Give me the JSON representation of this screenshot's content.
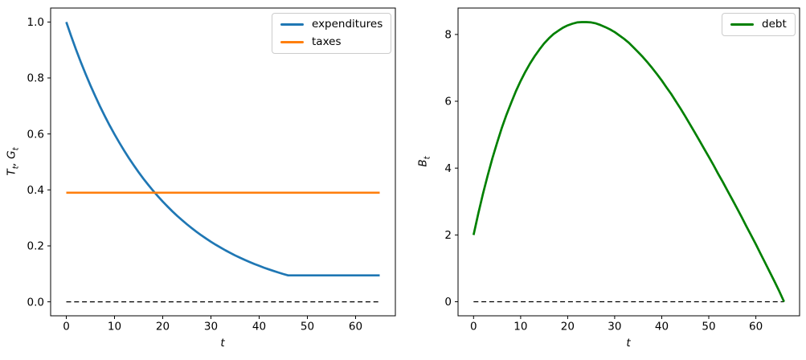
{
  "figure": {
    "background": "#ffffff",
    "spine_color": "#000000",
    "zero_line_color": "#000000"
  },
  "chart_data": [
    {
      "type": "line",
      "xlabel": "t",
      "ylabel": "T_t, G_t",
      "ylabel_parts": {
        "v1": "T",
        "s1": "t",
        "v2": ", G",
        "s2": "t"
      },
      "xlim": [
        -3.25,
        68.25
      ],
      "ylim": [
        -0.05,
        1.05
      ],
      "xtick_values": [
        0,
        10,
        20,
        30,
        40,
        50,
        60
      ],
      "xtick_labels": [
        "0",
        "10",
        "20",
        "30",
        "40",
        "50",
        "60"
      ],
      "ytick_values": [
        0.0,
        0.2,
        0.4,
        0.6,
        0.8,
        1.0
      ],
      "ytick_labels": [
        "0.0",
        "0.2",
        "0.4",
        "0.6",
        "0.8",
        "1.0"
      ],
      "grid": false,
      "legend_position": "upper-right",
      "zero_line": {
        "y": 0,
        "x_from": 0,
        "x_to": 65
      },
      "series": [
        {
          "name": "expenditures",
          "color": "#1f77b4",
          "x0": 0,
          "dx": 1,
          "y": [
            1.0,
            0.95,
            0.9025,
            0.8574,
            0.8145,
            0.7738,
            0.7351,
            0.6983,
            0.6634,
            0.6302,
            0.5987,
            0.5688,
            0.5404,
            0.5133,
            0.4877,
            0.4633,
            0.4401,
            0.4181,
            0.3972,
            0.3774,
            0.3585,
            0.3406,
            0.3235,
            0.3074,
            0.292,
            0.2774,
            0.2635,
            0.2503,
            0.2378,
            0.2259,
            0.2146,
            0.2039,
            0.1937,
            0.184,
            0.1748,
            0.1661,
            0.1578,
            0.1499,
            0.1424,
            0.1353,
            0.1285,
            0.1221,
            0.116,
            0.1102,
            0.1047,
            0.0994,
            0.0945,
            0.0945,
            0.0945,
            0.0945,
            0.0945,
            0.0945,
            0.0945,
            0.0945,
            0.0945,
            0.0945,
            0.0945,
            0.0945,
            0.0945,
            0.0945,
            0.0945,
            0.0945,
            0.0945,
            0.0945,
            0.0945,
            0.0945
          ]
        },
        {
          "name": "taxes",
          "color": "#ff7f0e",
          "x": [
            0,
            65
          ],
          "y": [
            0.39,
            0.39
          ]
        }
      ]
    },
    {
      "type": "line",
      "xlabel": "t",
      "ylabel": "B_t",
      "ylabel_parts": {
        "v1": "B",
        "s1": "t",
        "v2": "",
        "s2": ""
      },
      "xlim": [
        -3.3,
        69.3
      ],
      "ylim": [
        -0.42,
        8.79
      ],
      "xtick_values": [
        0,
        10,
        20,
        30,
        40,
        50,
        60
      ],
      "xtick_labels": [
        "0",
        "10",
        "20",
        "30",
        "40",
        "50",
        "60"
      ],
      "ytick_values": [
        0,
        2,
        4,
        6,
        8
      ],
      "ytick_labels": [
        "0",
        "2",
        "4",
        "6",
        "8"
      ],
      "grid": false,
      "legend_position": "upper-right",
      "zero_line": {
        "y": 0,
        "x_from": 0,
        "x_to": 66
      },
      "series": [
        {
          "name": "debt",
          "color": "#008000",
          "x0": 0,
          "dx": 1,
          "y": [
            2.0,
            2.64,
            3.23,
            3.78,
            4.29,
            4.76,
            5.2,
            5.6,
            5.96,
            6.3,
            6.61,
            6.88,
            7.13,
            7.35,
            7.55,
            7.73,
            7.88,
            8.01,
            8.11,
            8.2,
            8.27,
            8.32,
            8.36,
            8.37,
            8.37,
            8.36,
            8.33,
            8.28,
            8.22,
            8.15,
            8.07,
            7.97,
            7.87,
            7.75,
            7.61,
            7.47,
            7.32,
            7.16,
            6.99,
            6.81,
            6.62,
            6.42,
            6.22,
            6.0,
            5.78,
            5.55,
            5.31,
            5.07,
            4.83,
            4.58,
            4.34,
            4.09,
            3.83,
            3.58,
            3.32,
            3.06,
            2.8,
            2.53,
            2.26,
            1.99,
            1.72,
            1.44,
            1.16,
            0.88,
            0.6,
            0.31,
            0.0
          ]
        }
      ]
    }
  ]
}
